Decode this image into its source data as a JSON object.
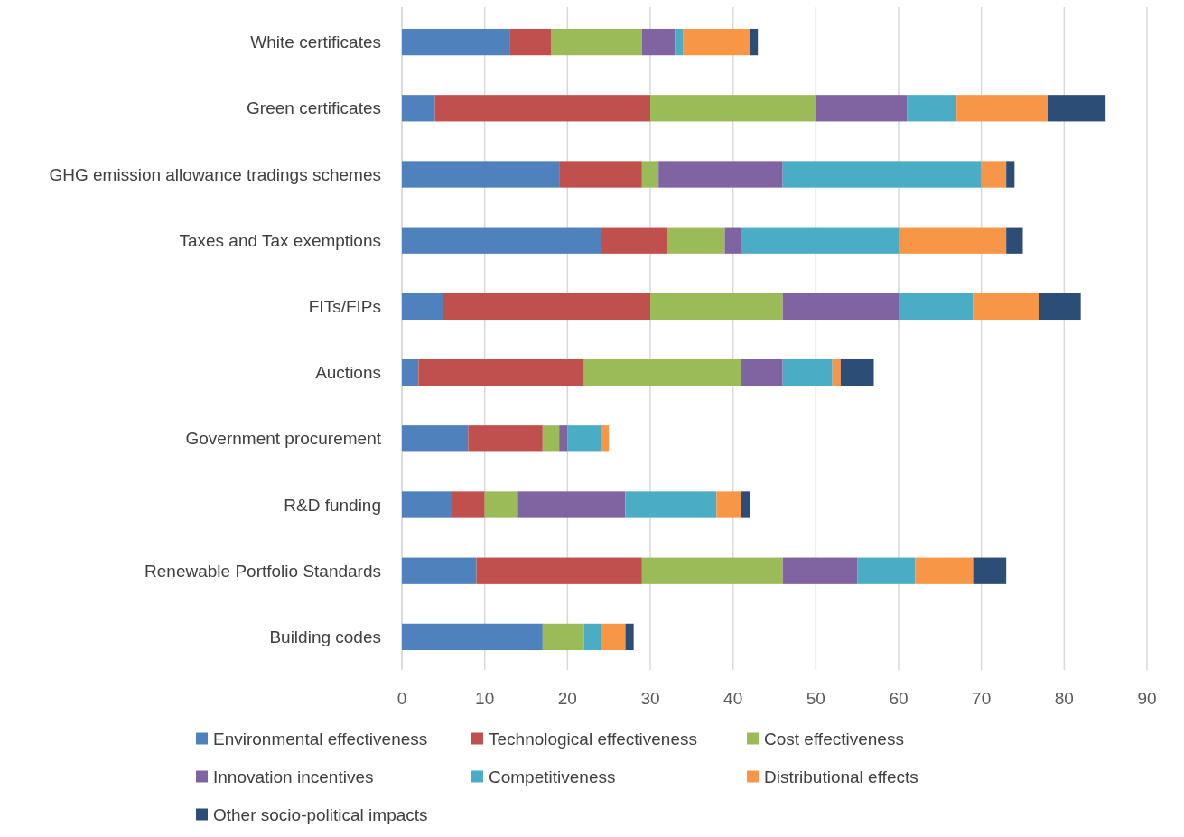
{
  "chart_data": {
    "type": "bar",
    "orientation": "horizontal",
    "stacked": true,
    "categories": [
      "White certificates",
      "Green certificates",
      "GHG emission allowance tradings schemes",
      "Taxes and Tax exemptions",
      "FITs/FIPs",
      "Auctions",
      "Government procurement",
      "R&D funding",
      "Renewable Portfolio Standards",
      "Building codes"
    ],
    "series": [
      {
        "name": "Environmental effectiveness",
        "color": "#4f81bd",
        "values": [
          13,
          4,
          19,
          24,
          5,
          2,
          8,
          6,
          9,
          17
        ]
      },
      {
        "name": "Technological effectiveness",
        "color": "#c0504d",
        "values": [
          5,
          26,
          10,
          8,
          25,
          20,
          9,
          4,
          20,
          0
        ]
      },
      {
        "name": "Cost effectiveness",
        "color": "#9bbb59",
        "values": [
          11,
          20,
          2,
          7,
          16,
          19,
          2,
          4,
          17,
          5
        ]
      },
      {
        "name": "Innovation incentives",
        "color": "#8064a2",
        "values": [
          4,
          11,
          15,
          2,
          14,
          5,
          1,
          13,
          9,
          0
        ]
      },
      {
        "name": "Competitiveness",
        "color": "#4bacc6",
        "values": [
          1,
          6,
          24,
          19,
          9,
          6,
          4,
          11,
          7,
          2
        ]
      },
      {
        "name": "Distributional effects",
        "color": "#f79646",
        "values": [
          8,
          11,
          3,
          13,
          8,
          1,
          1,
          3,
          7,
          3
        ]
      },
      {
        "name": "Other socio-political impacts",
        "color": "#2c4d75",
        "values": [
          1,
          7,
          1,
          2,
          5,
          4,
          0,
          1,
          4,
          1
        ]
      }
    ],
    "xlim": [
      0,
      90
    ],
    "xticks": [
      0,
      10,
      20,
      30,
      40,
      50,
      60,
      70,
      80,
      90
    ],
    "grid": "x",
    "legend": "bottom"
  }
}
